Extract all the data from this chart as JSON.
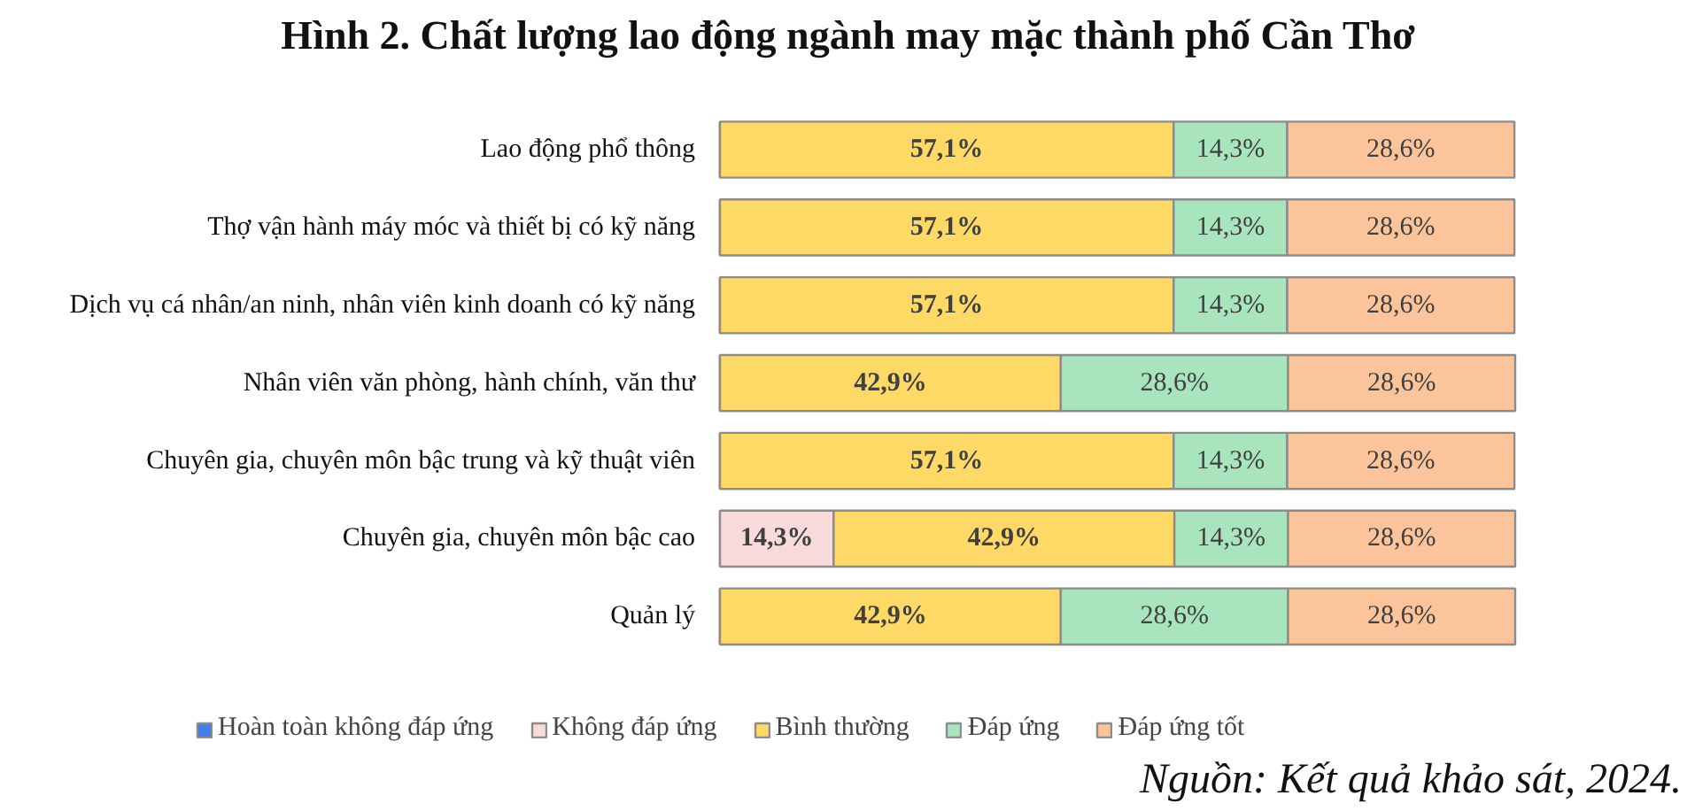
{
  "chart_data": {
    "type": "bar",
    "orientation": "horizontal",
    "stacked": true,
    "title": "Hình 2. Chất lượng lao động ngành may mặc thành phố Cần Thơ",
    "categories": [
      "Lao động phổ thông",
      "Thợ vận hành máy móc và thiết bị có kỹ năng",
      "Dịch vụ cá nhân/an ninh, nhân viên kinh doanh có kỹ năng",
      "Nhân viên văn phòng, hành chính, văn thư",
      "Chuyên gia, chuyên môn bậc trung và kỹ thuật viên",
      "Chuyên gia, chuyên môn bậc cao",
      "Quản lý"
    ],
    "series": [
      {
        "name": "Hoàn toàn không đáp ứng",
        "color": "#3f7fe8",
        "values": [
          0,
          0,
          0,
          0,
          0,
          0,
          0
        ],
        "value_labels": [
          null,
          null,
          null,
          null,
          null,
          null,
          null
        ]
      },
      {
        "name": "Không đáp ứng",
        "color": "#f9dada",
        "values": [
          0,
          0,
          0,
          0,
          0,
          14.3,
          0
        ],
        "value_labels": [
          null,
          null,
          null,
          null,
          null,
          "14,3%",
          null
        ]
      },
      {
        "name": "Bình thường",
        "color": "#ffd966",
        "values": [
          57.1,
          57.1,
          57.1,
          42.9,
          57.1,
          42.9,
          42.9
        ],
        "value_labels": [
          "57,1%",
          "57,1%",
          "57,1%",
          "42,9%",
          "57,1%",
          "42,9%",
          "42,9%"
        ]
      },
      {
        "name": "Đáp ứng",
        "color": "#a8e4bc",
        "values": [
          14.3,
          14.3,
          14.3,
          28.6,
          14.3,
          14.3,
          28.6
        ],
        "value_labels": [
          "14,3%",
          "14,3%",
          "14,3%",
          "28,6%",
          "14,3%",
          "14,3%",
          "28,6%"
        ]
      },
      {
        "name": "Đáp ứng tốt",
        "color": "#fcc49a",
        "values": [
          28.6,
          28.6,
          28.6,
          28.6,
          28.6,
          28.6,
          28.6
        ],
        "value_labels": [
          "28,6%",
          "28,6%",
          "28,6%",
          "28,6%",
          "28,6%",
          "28,6%",
          "28,6%"
        ]
      }
    ],
    "legend": "bottom",
    "annotations": [
      "Nguồn: Kết quả khảo sát, 2024."
    ]
  }
}
